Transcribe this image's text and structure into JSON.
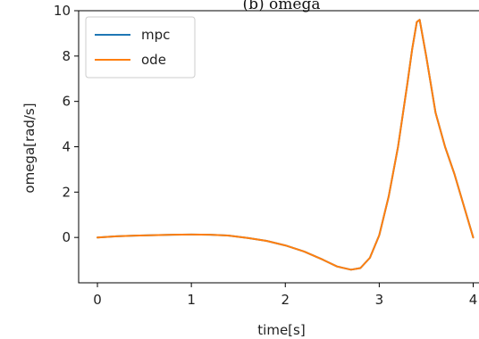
{
  "chart_data": {
    "type": "line",
    "title": "(b) omega",
    "xlabel": "time[s]",
    "ylabel": "omega[rad/s]",
    "xlim": [
      -0.2,
      4.1
    ],
    "ylim": [
      -2.0,
      10.0
    ],
    "xticks": [
      0,
      1,
      2,
      3,
      4
    ],
    "yticks": [
      0,
      2,
      4,
      6,
      8,
      10
    ],
    "grid": false,
    "legend_position": "top-left",
    "x": [
      0.0,
      0.2,
      0.4,
      0.6,
      0.8,
      1.0,
      1.2,
      1.4,
      1.6,
      1.8,
      2.0,
      2.2,
      2.4,
      2.55,
      2.7,
      2.8,
      2.9,
      3.0,
      3.1,
      3.2,
      3.3,
      3.35,
      3.4,
      3.43,
      3.5,
      3.6,
      3.7,
      3.8,
      3.9,
      4.0
    ],
    "series": [
      {
        "name": "mpc",
        "color": "#1f77b4",
        "values": [
          0.0,
          0.05,
          0.08,
          0.1,
          0.12,
          0.13,
          0.12,
          0.08,
          -0.02,
          -0.15,
          -0.35,
          -0.62,
          -0.98,
          -1.28,
          -1.42,
          -1.35,
          -0.9,
          0.1,
          1.8,
          4.0,
          6.8,
          8.3,
          9.5,
          9.6,
          8.0,
          5.5,
          4.0,
          2.8,
          1.4,
          0.0
        ]
      },
      {
        "name": "ode",
        "color": "#ff7f0e",
        "values": [
          0.0,
          0.05,
          0.08,
          0.1,
          0.12,
          0.13,
          0.12,
          0.08,
          -0.02,
          -0.15,
          -0.35,
          -0.62,
          -0.98,
          -1.28,
          -1.42,
          -1.35,
          -0.9,
          0.1,
          1.8,
          4.0,
          6.8,
          8.3,
          9.5,
          9.6,
          8.0,
          5.5,
          4.0,
          2.8,
          1.4,
          0.0
        ]
      }
    ]
  }
}
